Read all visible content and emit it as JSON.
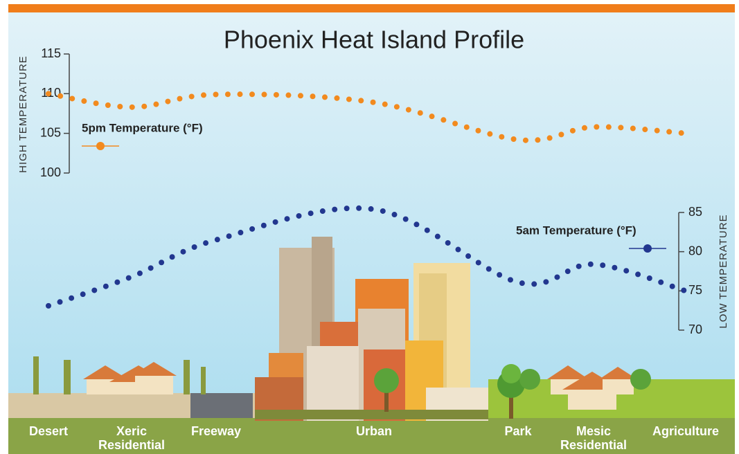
{
  "chart_data": {
    "type": "line",
    "title": "Phoenix Heat Island Profile",
    "y_label": "HIGH TEMPERATURE",
    "y2_label": "LOW TEMPERATURE",
    "categories": [
      "Desert",
      "Xeric Residential",
      "Freeway",
      "Urban",
      "Park",
      "Mesic Residential",
      "Agriculture"
    ],
    "ylim": [
      100,
      115
    ],
    "yticks": [
      100,
      105,
      110,
      115
    ],
    "y2lim": [
      70,
      85
    ],
    "y2ticks": [
      70,
      75,
      80,
      85
    ],
    "series": [
      {
        "name": "5pm Temperature (°F)",
        "color": "#f28a1e",
        "values": [
          110,
          108.3,
          109.9,
          108.9,
          104.2,
          105.8,
          105
        ]
      },
      {
        "name": "5am Temperature (°F)",
        "color": "#22378f",
        "axis": "y2",
        "values": [
          73.1,
          76.8,
          81.5,
          85.4,
          76.1,
          78.4,
          75
        ]
      }
    ]
  }
}
